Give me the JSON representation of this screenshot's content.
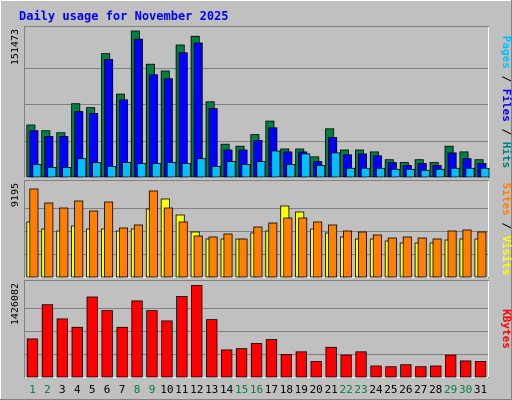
{
  "chart_data": {
    "type": "bar",
    "title": "Daily usage for November 2025",
    "days": [
      "1",
      "2",
      "3",
      "4",
      "5",
      "6",
      "7",
      "8",
      "9",
      "10",
      "11",
      "12",
      "13",
      "14",
      "15",
      "16",
      "17",
      "18",
      "19",
      "20",
      "21",
      "22",
      "23",
      "24",
      "25",
      "26",
      "27",
      "28",
      "29",
      "30",
      "31"
    ],
    "weekend_days": [
      1,
      2,
      8,
      9,
      15,
      16,
      22,
      23,
      29,
      30
    ],
    "panels": [
      {
        "id": "hits-files-pages",
        "tick_max_label": "151473",
        "ymax": 151473,
        "axis_label_parts": [
          {
            "text": "Pages",
            "color": "#00c0ff"
          },
          {
            "text": " / ",
            "color": "#000000"
          },
          {
            "text": "Files",
            "color": "#0000ff"
          },
          {
            "text": " / ",
            "color": "#000000"
          },
          {
            "text": "Hits",
            "color": "#008080"
          }
        ],
        "series": [
          {
            "name": "Hits",
            "color": "#008040",
            "values": [
              54000,
              48000,
              46000,
              76000,
              72000,
              128000,
              86000,
              154000,
              117000,
              110000,
              137000,
              146000,
              78000,
              34000,
              32000,
              44000,
              58000,
              29000,
              29000,
              21000,
              50000,
              28000,
              28000,
              26000,
              18000,
              15000,
              18000,
              15000,
              32000,
              26000,
              18000
            ]
          },
          {
            "name": "Files",
            "color": "#0000ff",
            "values": [
              48000,
              42000,
              42000,
              68000,
              66000,
              122000,
              80000,
              143000,
              106000,
              102000,
              129000,
              139000,
              71000,
              28000,
              28000,
              38000,
              51000,
              26000,
              26000,
              16000,
              41000,
              23000,
              24000,
              22000,
              15000,
              12000,
              14000,
              12000,
              25000,
              19000,
              14000
            ]
          },
          {
            "name": "Pages",
            "color": "#00c0ff",
            "values": [
              13000,
              10000,
              10000,
              19000,
              15000,
              11000,
              15000,
              14000,
              14000,
              15000,
              14000,
              19000,
              11000,
              16000,
              13000,
              16000,
              27000,
              13000,
              24000,
              12000,
              25000,
              9000,
              9000,
              9000,
              8000,
              8000,
              7000,
              8000,
              9000,
              9000,
              9000
            ]
          }
        ]
      },
      {
        "id": "visits-sites",
        "tick_max_label": "9195",
        "ymax": 9195,
        "axis_label_parts": [
          {
            "text": "Sites",
            "color": "#ff8000"
          },
          {
            "text": " / ",
            "color": "#000000"
          },
          {
            "text": "Visits",
            "color": "#ffff00"
          }
        ],
        "series": [
          {
            "name": "Visits",
            "color": "#ffff00",
            "values": [
              5500,
              4800,
              4600,
              5100,
              4800,
              4800,
              4600,
              4800,
              6800,
              7800,
              6200,
              4500,
              3800,
              3800,
              3800,
              4400,
              4600,
              7100,
              6500,
              4800,
              4400,
              4000,
              3800,
              3800,
              3600,
              3400,
              3400,
              3400,
              3700,
              3800,
              3800
            ]
          },
          {
            "name": "Sites",
            "color": "#ff8000",
            "values": [
              8800,
              7400,
              6900,
              7600,
              6600,
              7500,
              4900,
              5200,
              8600,
              6900,
              5500,
              4100,
              4000,
              4300,
              3800,
              5000,
              5400,
              5900,
              5900,
              5500,
              5200,
              4600,
              4500,
              4200,
              3900,
              4000,
              3900,
              3800,
              4600,
              4700,
              4500
            ]
          }
        ]
      },
      {
        "id": "kbytes",
        "tick_max_label": "1426082",
        "ymax": 1426082,
        "axis_label_parts": [
          {
            "text": "KBytes",
            "color": "#ff0000"
          }
        ],
        "series": [
          {
            "name": "KBytes",
            "color": "#ff0000",
            "values": [
              590000,
              1120000,
              900000,
              770000,
              1240000,
              1030000,
              770000,
              1180000,
              1030000,
              870000,
              1250000,
              1420000,
              890000,
              420000,
              440000,
              520000,
              580000,
              350000,
              390000,
              240000,
              460000,
              340000,
              390000,
              170000,
              160000,
              190000,
              160000,
              170000,
              340000,
              250000,
              240000
            ]
          }
        ]
      }
    ]
  }
}
